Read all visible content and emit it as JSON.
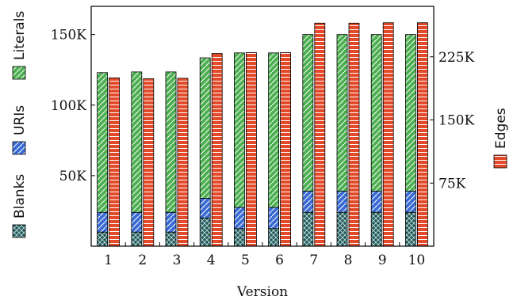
{
  "chart_data": {
    "type": "bar",
    "xlabel": "Version",
    "ylabel": "",
    "categories": [
      "1",
      "2",
      "3",
      "4",
      "5",
      "6",
      "7",
      "8",
      "9",
      "10"
    ],
    "stacked_series": [
      {
        "name": "Blanks",
        "color": "#1f5a5a",
        "pattern": "crosshatch",
        "values": [
          10000,
          10000,
          10000,
          20000,
          12500,
          12500,
          24000,
          24000,
          24000,
          24000
        ]
      },
      {
        "name": "URIs",
        "color": "#3a6bd4",
        "pattern": "diagonal",
        "values": [
          14000,
          14000,
          14000,
          14000,
          15000,
          15000,
          15000,
          15000,
          15000,
          15000
        ]
      },
      {
        "name": "Literals",
        "color": "#4caf50",
        "pattern": "diagonal",
        "values": [
          99000,
          99500,
          99500,
          99500,
          109500,
          109500,
          111000,
          111000,
          111000,
          111000
        ]
      }
    ],
    "right_series": {
      "name": "Edges",
      "color": "#e34a2a",
      "pattern": "horizontal",
      "values": [
        200000,
        199000,
        199500,
        229000,
        230000,
        230000,
        265000,
        265000,
        265500,
        265500
      ]
    },
    "left_axis": {
      "ylim": [
        0,
        170000
      ],
      "ticks": [
        50000,
        100000,
        150000
      ],
      "tick_labels": [
        "50K",
        "100K",
        "150K"
      ]
    },
    "right_axis": {
      "ylim": [
        0,
        285000
      ],
      "ticks": [
        75000,
        150000,
        225000
      ],
      "tick_labels": [
        "75K",
        "150K",
        "225K"
      ]
    },
    "legend_left": [
      "Blanks",
      "URIs",
      "Literals"
    ],
    "legend_right": [
      "Edges"
    ],
    "grid": false
  }
}
